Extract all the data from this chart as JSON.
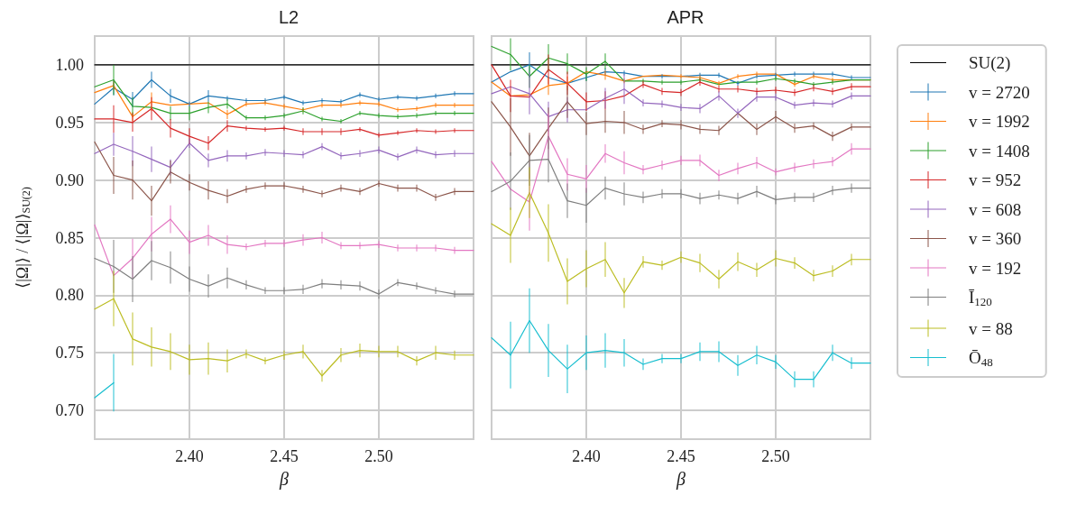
{
  "chart_data": [
    {
      "type": "line",
      "title": "L2",
      "xlabel": "β",
      "ylabel": "⟨|Ω|⟩ / ⟨|Ω|⟩$_{SU(2)}$",
      "x": [
        2.35,
        2.36,
        2.37,
        2.38,
        2.39,
        2.4,
        2.41,
        2.42,
        2.43,
        2.44,
        2.45,
        2.46,
        2.47,
        2.48,
        2.49,
        2.5,
        2.51,
        2.52,
        2.53,
        2.54,
        2.55
      ],
      "xlim": [
        2.35,
        2.55
      ],
      "xticks": [
        {
          "value": 2.4,
          "label": "2.40"
        },
        {
          "value": 2.45,
          "label": "2.45"
        },
        {
          "value": 2.5,
          "label": "2.50"
        }
      ],
      "ylim": [
        0.675,
        1.025
      ],
      "yticks": [
        {
          "value": 0.7,
          "label": "0.70"
        },
        {
          "value": 0.75,
          "label": "0.75"
        },
        {
          "value": 0.8,
          "label": "0.80"
        },
        {
          "value": 0.85,
          "label": "0.85"
        },
        {
          "value": 0.9,
          "label": "0.90"
        },
        {
          "value": 0.95,
          "label": "0.95"
        },
        {
          "value": 1.0,
          "label": "1.00"
        }
      ],
      "grid": true,
      "legend": false,
      "marker": "none",
      "line_style": "solid",
      "series": [
        {
          "color": "#000000",
          "values": [
            1.0,
            1.0,
            1.0,
            1.0,
            1.0,
            1.0,
            1.0,
            1.0,
            1.0,
            1.0,
            1.0,
            1.0,
            1.0,
            1.0,
            1.0,
            1.0,
            1.0,
            1.0,
            1.0,
            1.0,
            1.0
          ]
        },
        {
          "color": "#1f77b4",
          "values": [
            0.966,
            0.98,
            0.97,
            0.987,
            0.973,
            0.966,
            0.973,
            0.971,
            0.969,
            0.969,
            0.972,
            0.967,
            0.969,
            0.968,
            0.974,
            0.97,
            0.972,
            0.971,
            0.973,
            0.975,
            0.975
          ],
          "errors": [
            null,
            0.0065,
            0.0065,
            0.007,
            0.006,
            0.002,
            0.005,
            0.002,
            0.002,
            0.002,
            0.002,
            0.002,
            0.002,
            0.002,
            0.002,
            0.002,
            0.002,
            0.002,
            0.002,
            0.002,
            null
          ]
        },
        {
          "color": "#ff7f0e",
          "values": [
            0.976,
            0.982,
            0.955,
            0.968,
            0.965,
            0.966,
            0.967,
            0.957,
            0.966,
            0.967,
            0.964,
            0.961,
            0.965,
            0.965,
            0.967,
            0.966,
            0.961,
            0.962,
            0.965,
            0.965,
            0.965
          ],
          "errors": [
            null,
            0.004,
            0.004,
            0.008,
            null,
            null,
            null,
            0.004,
            0.002,
            0.002,
            0.002,
            0.002,
            0.002,
            0.002,
            0.002,
            0.002,
            0.002,
            0.002,
            0.002,
            0.002,
            null
          ]
        },
        {
          "color": "#2ca02c",
          "values": [
            0.981,
            0.987,
            0.964,
            0.963,
            0.958,
            0.958,
            0.963,
            0.966,
            0.954,
            0.954,
            0.956,
            0.96,
            0.953,
            0.951,
            0.958,
            0.956,
            0.955,
            0.956,
            0.958,
            0.958,
            0.958
          ],
          "errors": [
            null,
            0.013,
            0.008,
            null,
            0.006,
            0.006,
            0.005,
            0.004,
            0.002,
            0.002,
            0.002,
            0.003,
            0.002,
            0.002,
            0.002,
            0.002,
            0.002,
            0.002,
            0.002,
            0.002,
            null
          ]
        },
        {
          "color": "#d62728",
          "values": [
            0.953,
            0.953,
            0.95,
            0.962,
            0.945,
            0.938,
            0.932,
            0.947,
            0.945,
            0.944,
            0.945,
            0.942,
            0.942,
            0.942,
            0.944,
            0.939,
            0.941,
            0.943,
            0.942,
            0.943,
            0.943
          ],
          "errors": [
            null,
            0.012,
            0.008,
            0.01,
            0.008,
            0.007,
            0.006,
            0.005,
            0.002,
            0.002,
            0.002,
            0.003,
            0.003,
            0.003,
            0.002,
            0.002,
            0.002,
            0.002,
            0.002,
            0.002,
            null
          ]
        },
        {
          "color": "#9467bd",
          "values": [
            0.923,
            0.931,
            0.925,
            0.918,
            0.911,
            0.932,
            0.917,
            0.921,
            0.921,
            0.924,
            0.923,
            0.922,
            0.929,
            0.921,
            0.923,
            0.926,
            0.92,
            0.926,
            0.922,
            0.923,
            0.923
          ],
          "errors": [
            null,
            0.01,
            0.013,
            0.011,
            0.007,
            0.004,
            0.006,
            0.005,
            0.003,
            0.003,
            0.003,
            0.003,
            0.003,
            0.003,
            0.003,
            0.003,
            0.003,
            0.003,
            0.003,
            0.003,
            null
          ]
        },
        {
          "color": "#8c564b",
          "values": [
            0.933,
            0.904,
            0.9,
            0.882,
            0.907,
            0.898,
            0.891,
            0.886,
            0.892,
            0.895,
            0.895,
            0.892,
            0.888,
            0.893,
            0.89,
            0.897,
            0.893,
            0.893,
            0.885,
            0.89,
            0.89
          ],
          "errors": [
            null,
            0.016,
            0.017,
            0.013,
            0.01,
            0.007,
            0.008,
            0.006,
            0.003,
            0.003,
            0.003,
            0.003,
            0.003,
            0.003,
            0.003,
            0.003,
            0.003,
            0.003,
            0.003,
            0.003,
            null
          ]
        },
        {
          "color": "#e377c2",
          "values": [
            0.861,
            0.817,
            0.832,
            0.853,
            0.866,
            0.846,
            0.852,
            0.844,
            0.842,
            0.845,
            0.845,
            0.848,
            0.85,
            0.843,
            0.843,
            0.844,
            0.841,
            0.841,
            0.841,
            0.839,
            0.839
          ],
          "errors": [
            null,
            null,
            0.017,
            0.015,
            0.012,
            0.01,
            0.009,
            0.008,
            0.003,
            0.003,
            0.003,
            0.005,
            0.005,
            0.003,
            0.003,
            0.003,
            0.003,
            0.003,
            0.003,
            0.003,
            null
          ]
        },
        {
          "color": "#7f7f7f",
          "values": [
            0.832,
            0.825,
            0.814,
            0.83,
            0.824,
            0.814,
            0.808,
            0.815,
            0.809,
            0.804,
            0.804,
            0.805,
            0.81,
            0.809,
            0.808,
            0.801,
            0.811,
            0.808,
            0.804,
            0.801,
            0.801
          ],
          "errors": [
            null,
            0.023,
            0.02,
            0.017,
            0.014,
            0.011,
            0.01,
            0.009,
            0.004,
            0.003,
            0.003,
            0.004,
            0.004,
            0.004,
            0.004,
            0.004,
            0.003,
            0.003,
            0.003,
            0.003,
            null
          ]
        },
        {
          "color": "#bcbd22",
          "values": [
            0.788,
            0.797,
            0.762,
            0.755,
            0.751,
            0.744,
            0.745,
            0.743,
            0.749,
            0.743,
            0.748,
            0.751,
            0.73,
            0.748,
            0.752,
            0.751,
            0.751,
            0.743,
            0.75,
            0.748,
            0.748
          ],
          "errors": [
            null,
            0.024,
            0.023,
            0.017,
            0.016,
            0.013,
            0.014,
            0.01,
            0.004,
            0.003,
            0.004,
            0.006,
            0.005,
            0.006,
            0.006,
            0.005,
            0.005,
            0.004,
            0.006,
            0.004,
            null
          ]
        },
        {
          "color": "#17becf",
          "values": [
            0.711,
            0.724,
            null,
            null,
            null,
            null,
            null,
            null,
            null,
            null,
            null,
            null,
            null,
            null,
            null,
            null,
            null,
            null,
            null,
            null,
            null
          ],
          "errors": [
            null,
            0.025,
            null,
            null,
            null,
            null,
            null,
            null,
            null,
            null,
            null,
            null,
            null,
            null,
            null,
            null,
            null,
            null,
            null,
            null,
            null
          ]
        }
      ]
    },
    {
      "type": "line",
      "title": "APR",
      "xlabel": "β",
      "x": [
        2.35,
        2.36,
        2.37,
        2.38,
        2.39,
        2.4,
        2.41,
        2.42,
        2.43,
        2.44,
        2.45,
        2.46,
        2.47,
        2.48,
        2.49,
        2.5,
        2.51,
        2.52,
        2.53,
        2.54,
        2.55
      ],
      "xlim": [
        2.35,
        2.55
      ],
      "xticks": [
        {
          "value": 2.4,
          "label": "2.40"
        },
        {
          "value": 2.45,
          "label": "2.45"
        },
        {
          "value": 2.5,
          "label": "2.50"
        }
      ],
      "ylim": [
        0.675,
        1.025
      ],
      "yticks": [
        0.7,
        0.75,
        0.8,
        0.85,
        0.9,
        0.95,
        1.0
      ],
      "tick_labels": "x",
      "grid": true,
      "legend": "right",
      "marker": "none",
      "line_style": "solid",
      "series": [
        {
          "name": "SU(2)",
          "color": "#000000",
          "values": [
            1.0,
            1.0,
            1.0,
            1.0,
            1.0,
            1.0,
            1.0,
            1.0,
            1.0,
            1.0,
            1.0,
            1.0,
            1.0,
            1.0,
            1.0,
            1.0,
            1.0,
            1.0,
            1.0,
            1.0,
            1.0
          ]
        },
        {
          "name": "v = 2720",
          "color": "#1f77b4",
          "values": [
            0.985,
            0.994,
            1.0,
            0.989,
            0.984,
            0.989,
            0.994,
            0.993,
            0.99,
            0.99,
            0.99,
            0.991,
            0.991,
            0.984,
            0.99,
            0.991,
            0.992,
            0.992,
            0.992,
            0.989,
            0.989
          ],
          "errors": [
            null,
            null,
            0.011,
            null,
            null,
            0.003,
            0.003,
            0.002,
            null,
            0.002,
            null,
            0.002,
            0.002,
            0.002,
            0.002,
            0.002,
            0.002,
            0.002,
            0.002,
            0.002,
            null
          ]
        },
        {
          "name": "v = 1992",
          "color": "#ff7f0e",
          "values": [
            0.985,
            0.973,
            0.974,
            0.982,
            0.984,
            0.994,
            0.991,
            0.986,
            0.99,
            0.991,
            0.99,
            0.989,
            0.984,
            0.99,
            0.992,
            0.992,
            0.983,
            0.99,
            0.987,
            0.987,
            0.987
          ],
          "errors": [
            null,
            null,
            null,
            0.008,
            0.006,
            null,
            0.004,
            0.002,
            null,
            null,
            0.002,
            0.002,
            0.002,
            0.002,
            0.002,
            null,
            0.002,
            0.002,
            0.002,
            null,
            null
          ]
        },
        {
          "name": "v = 1408",
          "color": "#2ca02c",
          "values": [
            1.016,
            1.009,
            0.99,
            1.006,
            1.001,
            0.992,
            1.003,
            0.986,
            0.986,
            0.985,
            0.985,
            0.987,
            0.983,
            0.985,
            0.985,
            0.988,
            0.986,
            0.983,
            0.985,
            0.987,
            0.987
          ],
          "errors": [
            null,
            0.014,
            0.01,
            0.012,
            0.009,
            0.006,
            0.007,
            null,
            0.002,
            0.002,
            0.002,
            0.002,
            null,
            null,
            0.002,
            0.002,
            0.002,
            0.002,
            0.002,
            null,
            null
          ]
        },
        {
          "name": "v = 952",
          "color": "#d62728",
          "values": [
            1.0,
            0.973,
            0.972,
            0.996,
            0.984,
            0.968,
            0.969,
            0.973,
            0.983,
            0.977,
            0.976,
            0.985,
            0.979,
            0.979,
            0.977,
            0.978,
            0.976,
            0.98,
            0.977,
            0.981,
            0.981
          ],
          "errors": [
            null,
            0.014,
            null,
            0.013,
            0.01,
            0.008,
            0.008,
            null,
            0.003,
            0.003,
            0.003,
            0.003,
            0.003,
            0.003,
            0.003,
            0.003,
            0.003,
            0.003,
            0.003,
            0.003,
            null
          ]
        },
        {
          "name": "v = 608",
          "color": "#9467bd",
          "values": [
            0.975,
            0.981,
            0.975,
            0.955,
            0.961,
            0.961,
            0.971,
            0.979,
            0.967,
            0.966,
            0.963,
            0.962,
            0.973,
            0.958,
            0.972,
            0.972,
            0.965,
            0.967,
            0.966,
            0.973,
            0.973
          ],
          "errors": [
            null,
            null,
            0.018,
            0.013,
            0.011,
            null,
            0.009,
            0.013,
            0.003,
            0.003,
            0.003,
            0.004,
            0.004,
            0.004,
            0.004,
            0.003,
            0.003,
            0.003,
            0.003,
            0.003,
            null
          ]
        },
        {
          "name": "v = 360",
          "color": "#8c564b",
          "values": [
            0.968,
            0.946,
            0.921,
            0.945,
            0.968,
            0.949,
            0.951,
            0.95,
            0.944,
            0.949,
            0.948,
            0.944,
            0.943,
            0.958,
            0.944,
            0.955,
            0.945,
            0.947,
            0.938,
            0.946,
            0.946
          ],
          "errors": [
            null,
            0.025,
            0.02,
            0.018,
            0.014,
            0.01,
            0.01,
            0.01,
            0.004,
            0.003,
            0.004,
            0.004,
            0.004,
            null,
            0.005,
            0.005,
            0.004,
            0.003,
            0.004,
            0.003,
            null
          ]
        },
        {
          "name": "v = 192",
          "color": "#e377c2",
          "values": [
            0.916,
            0.892,
            0.881,
            0.938,
            0.905,
            0.901,
            0.923,
            0.915,
            0.909,
            0.913,
            0.917,
            0.917,
            0.904,
            0.91,
            0.915,
            0.907,
            0.911,
            0.914,
            0.916,
            0.927,
            0.927
          ],
          "errors": [
            null,
            null,
            0.025,
            0.02,
            0.014,
            0.012,
            0.008,
            0.01,
            0.004,
            0.004,
            0.004,
            0.005,
            0.005,
            0.005,
            0.005,
            0.003,
            0.004,
            0.004,
            0.004,
            0.005,
            null
          ]
        },
        {
          "name": "Ī$_{120}$",
          "color": "#7f7f7f",
          "values": [
            0.89,
            0.899,
            0.917,
            0.918,
            0.882,
            0.878,
            0.893,
            0.888,
            0.885,
            0.888,
            0.888,
            0.884,
            0.887,
            0.884,
            0.89,
            0.883,
            0.885,
            0.885,
            0.891,
            0.893,
            0.893
          ],
          "errors": [
            null,
            0.025,
            0.022,
            0.02,
            0.015,
            0.015,
            0.01,
            0.01,
            0.005,
            0.004,
            0.004,
            0.005,
            0.004,
            0.005,
            0.005,
            0.004,
            0.004,
            0.004,
            0.004,
            0.004,
            null
          ]
        },
        {
          "name": "v = 88",
          "color": "#bcbd22",
          "values": [
            0.862,
            0.852,
            0.889,
            0.854,
            0.812,
            0.823,
            0.831,
            0.802,
            0.829,
            0.826,
            0.833,
            0.828,
            0.814,
            0.829,
            0.822,
            0.832,
            0.828,
            0.817,
            0.821,
            0.831,
            0.831
          ],
          "errors": [
            null,
            0.024,
            0.022,
            0.025,
            0.02,
            0.016,
            0.015,
            0.013,
            0.005,
            0.004,
            0.005,
            0.008,
            0.008,
            0.008,
            0.006,
            0.007,
            0.005,
            0.005,
            0.005,
            0.005,
            null
          ]
        },
        {
          "name": "Ō$_{48}$",
          "color": "#17becf",
          "values": [
            0.763,
            0.748,
            0.778,
            0.752,
            0.736,
            0.75,
            0.752,
            0.75,
            0.74,
            0.745,
            0.745,
            0.751,
            0.751,
            0.739,
            0.748,
            0.742,
            0.727,
            0.727,
            0.75,
            0.741,
            0.741
          ],
          "errors": [
            null,
            0.029,
            0.028,
            0.023,
            0.021,
            0.015,
            0.015,
            0.012,
            0.005,
            0.004,
            0.004,
            0.008,
            0.009,
            0.009,
            0.008,
            0.006,
            0.007,
            0.007,
            0.007,
            0.005,
            null
          ]
        }
      ]
    }
  ]
}
